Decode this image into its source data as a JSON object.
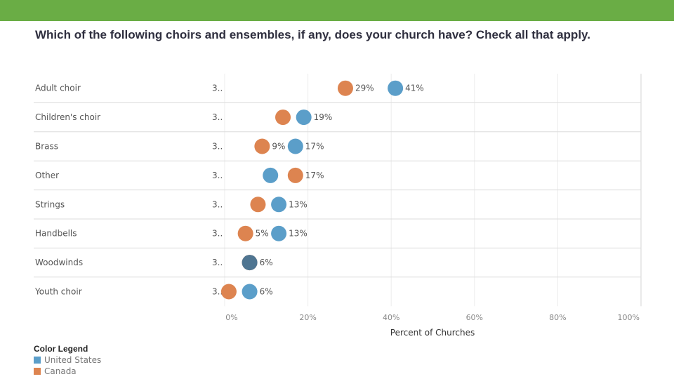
{
  "title": "Which of the following choirs and ensembles, if any, does your church have? Check all that apply.",
  "colors": {
    "top_bar": "#6aad45",
    "us": "#5b9ec9",
    "canada": "#dd8450",
    "overlap": "#4f7591"
  },
  "chart_data": {
    "type": "scatter",
    "title": "Which of the following choirs and ensembles, if any, does your church have? Check all that apply.",
    "xlabel": "Percent of Churches",
    "xlim": [
      0,
      100
    ],
    "x_ticks": [
      "0%",
      "20%",
      "40%",
      "60%",
      "80%",
      "100%"
    ],
    "grid": true,
    "categories": [
      "Adult choir",
      "Children's choir",
      "Brass",
      "Other",
      "Strings",
      "Handbells",
      "Woodwinds",
      "Youth choir"
    ],
    "count_labels": [
      "3..",
      "3..",
      "3..",
      "3..",
      "3..",
      "3..",
      "3..",
      "3.."
    ],
    "series": [
      {
        "name": "United States",
        "color": "#5b9ec9",
        "values": [
          41,
          19,
          17,
          11,
          13,
          13,
          6,
          6
        ],
        "labels": [
          "41%",
          "19%",
          "17%",
          "",
          "13%",
          "13%",
          "6%",
          "6%"
        ]
      },
      {
        "name": "Canada",
        "color": "#dd8450",
        "values": [
          29,
          14,
          9,
          17,
          8,
          5,
          6,
          1
        ],
        "labels": [
          "29%",
          "",
          "9%",
          "17%",
          "",
          "5%",
          "",
          ""
        ]
      }
    ],
    "legend": {
      "title": "Color Legend",
      "position": "bottom-left"
    }
  }
}
